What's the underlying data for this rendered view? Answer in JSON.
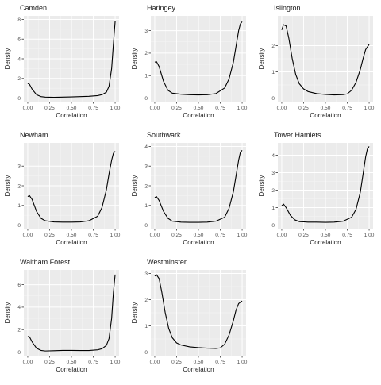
{
  "chart_data": [
    {
      "type": "line",
      "title": "Camden",
      "xlabel": "Correlation",
      "ylabel": "Density",
      "xlim": [
        0,
        1
      ],
      "ylim": [
        0,
        8
      ],
      "xticks": [
        "0.00",
        "0.25",
        "0.50",
        "0.75",
        "1.00"
      ],
      "yticks": [
        "0",
        "2",
        "4",
        "6",
        "8"
      ],
      "grid": true,
      "x": [
        0.0,
        0.02,
        0.05,
        0.1,
        0.15,
        0.2,
        0.3,
        0.4,
        0.5,
        0.6,
        0.7,
        0.8,
        0.85,
        0.9,
        0.93,
        0.96,
        0.98,
        1.0
      ],
      "y": [
        1.5,
        1.4,
        0.9,
        0.35,
        0.15,
        0.1,
        0.08,
        0.1,
        0.12,
        0.15,
        0.18,
        0.25,
        0.35,
        0.6,
        1.2,
        3.0,
        5.5,
        7.8
      ]
    },
    {
      "type": "line",
      "title": "Haringey",
      "xlabel": "Correlation",
      "ylabel": "Density",
      "xlim": [
        0,
        1
      ],
      "ylim": [
        0,
        3.5
      ],
      "xticks": [
        "0.00",
        "0.25",
        "0.50",
        "0.75",
        "1.00"
      ],
      "yticks": [
        "0",
        "1",
        "2",
        "3"
      ],
      "grid": true,
      "x": [
        0.0,
        0.02,
        0.05,
        0.1,
        0.15,
        0.2,
        0.3,
        0.4,
        0.5,
        0.6,
        0.7,
        0.8,
        0.85,
        0.9,
        0.93,
        0.96,
        0.98,
        1.0
      ],
      "y": [
        1.6,
        1.62,
        1.4,
        0.75,
        0.35,
        0.22,
        0.17,
        0.15,
        0.14,
        0.15,
        0.2,
        0.45,
        0.85,
        1.6,
        2.3,
        3.0,
        3.3,
        3.4
      ]
    },
    {
      "type": "line",
      "title": "Islington",
      "xlabel": "Correlation",
      "ylabel": "Density",
      "xlim": [
        0,
        1
      ],
      "ylim": [
        0,
        3
      ],
      "xticks": [
        "0.00",
        "0.25",
        "0.50",
        "0.75",
        "1.00"
      ],
      "yticks": [
        "0",
        "1",
        "2"
      ],
      "grid": true,
      "x": [
        0.0,
        0.02,
        0.05,
        0.08,
        0.12,
        0.16,
        0.2,
        0.25,
        0.3,
        0.4,
        0.5,
        0.6,
        0.7,
        0.75,
        0.8,
        0.85,
        0.9,
        0.93,
        0.96,
        1.0
      ],
      "y": [
        2.6,
        2.8,
        2.75,
        2.3,
        1.5,
        0.9,
        0.55,
        0.35,
        0.25,
        0.17,
        0.14,
        0.12,
        0.13,
        0.16,
        0.3,
        0.6,
        1.1,
        1.5,
        1.85,
        2.05
      ]
    },
    {
      "type": "line",
      "title": "Newham",
      "xlabel": "Correlation",
      "ylabel": "Density",
      "xlim": [
        0,
        1
      ],
      "ylim": [
        0,
        4
      ],
      "xticks": [
        "0.00",
        "0.25",
        "0.50",
        "0.75",
        "1.00"
      ],
      "yticks": [
        "0",
        "1",
        "2",
        "3"
      ],
      "grid": true,
      "x": [
        0.0,
        0.02,
        0.05,
        0.1,
        0.15,
        0.2,
        0.3,
        0.4,
        0.5,
        0.6,
        0.7,
        0.8,
        0.85,
        0.9,
        0.93,
        0.96,
        0.98,
        1.0
      ],
      "y": [
        1.45,
        1.5,
        1.3,
        0.7,
        0.35,
        0.22,
        0.16,
        0.15,
        0.15,
        0.16,
        0.22,
        0.45,
        0.9,
        1.8,
        2.6,
        3.3,
        3.65,
        3.75
      ]
    },
    {
      "type": "line",
      "title": "Southwark",
      "xlabel": "Correlation",
      "ylabel": "Density",
      "xlim": [
        0,
        1
      ],
      "ylim": [
        0,
        4
      ],
      "xticks": [
        "0.00",
        "0.25",
        "0.50",
        "0.75",
        "1.00"
      ],
      "yticks": [
        "0",
        "1",
        "2",
        "3",
        "4"
      ],
      "grid": true,
      "x": [
        0.0,
        0.02,
        0.05,
        0.1,
        0.15,
        0.2,
        0.3,
        0.4,
        0.5,
        0.6,
        0.7,
        0.8,
        0.85,
        0.9,
        0.93,
        0.96,
        0.98,
        1.0
      ],
      "y": [
        1.4,
        1.45,
        1.25,
        0.7,
        0.35,
        0.2,
        0.15,
        0.14,
        0.14,
        0.15,
        0.2,
        0.4,
        0.85,
        1.7,
        2.5,
        3.3,
        3.7,
        3.8
      ]
    },
    {
      "type": "line",
      "title": "Tower Hamlets",
      "xlabel": "Correlation",
      "ylabel": "Density",
      "xlim": [
        0,
        1
      ],
      "ylim": [
        0,
        4.5
      ],
      "xticks": [
        "0.00",
        "0.25",
        "0.50",
        "0.75",
        "1.00"
      ],
      "yticks": [
        "0",
        "1",
        "2",
        "3",
        "4"
      ],
      "grid": true,
      "x": [
        0.0,
        0.02,
        0.05,
        0.1,
        0.15,
        0.2,
        0.3,
        0.4,
        0.5,
        0.6,
        0.7,
        0.8,
        0.85,
        0.9,
        0.93,
        0.96,
        0.98,
        1.0
      ],
      "y": [
        1.1,
        1.2,
        1.0,
        0.55,
        0.3,
        0.2,
        0.17,
        0.17,
        0.16,
        0.17,
        0.22,
        0.45,
        0.9,
        1.9,
        2.9,
        3.9,
        4.35,
        4.5
      ]
    },
    {
      "type": "line",
      "title": "Waltham Forest",
      "xlabel": "Correlation",
      "ylabel": "Density",
      "xlim": [
        0,
        1
      ],
      "ylim": [
        0,
        7
      ],
      "xticks": [
        "0.00",
        "0.25",
        "0.50",
        "0.75",
        "1.00"
      ],
      "yticks": [
        "0",
        "2",
        "4",
        "6"
      ],
      "grid": true,
      "x": [
        0.0,
        0.02,
        0.05,
        0.1,
        0.15,
        0.2,
        0.3,
        0.4,
        0.5,
        0.6,
        0.7,
        0.8,
        0.85,
        0.9,
        0.93,
        0.96,
        0.98,
        1.0
      ],
      "y": [
        1.4,
        1.35,
        0.9,
        0.35,
        0.15,
        0.1,
        0.12,
        0.15,
        0.15,
        0.14,
        0.14,
        0.2,
        0.3,
        0.6,
        1.2,
        3.0,
        5.3,
        6.9
      ]
    },
    {
      "type": "line",
      "title": "Westminster",
      "xlabel": "Correlation",
      "ylabel": "Density",
      "xlim": [
        0,
        1
      ],
      "ylim": [
        0,
        3
      ],
      "xticks": [
        "0.00",
        "0.25",
        "0.50",
        "0.75",
        "1.00"
      ],
      "yticks": [
        "0",
        "1",
        "2",
        "3"
      ],
      "grid": true,
      "x": [
        0.0,
        0.02,
        0.05,
        0.08,
        0.12,
        0.16,
        0.2,
        0.25,
        0.3,
        0.4,
        0.5,
        0.6,
        0.7,
        0.75,
        0.8,
        0.85,
        0.9,
        0.93,
        0.96,
        1.0
      ],
      "y": [
        2.9,
        2.95,
        2.8,
        2.3,
        1.5,
        0.9,
        0.55,
        0.35,
        0.27,
        0.2,
        0.17,
        0.15,
        0.14,
        0.16,
        0.3,
        0.65,
        1.2,
        1.6,
        1.85,
        1.95
      ]
    }
  ],
  "colors": {
    "panel_background": "#ebebeb",
    "grid_major": "#ffffff",
    "grid_minor": "#f5f5f5",
    "line": "#000000",
    "title_text": "#1a1a1a",
    "tick_text": "#4d4d4d"
  }
}
